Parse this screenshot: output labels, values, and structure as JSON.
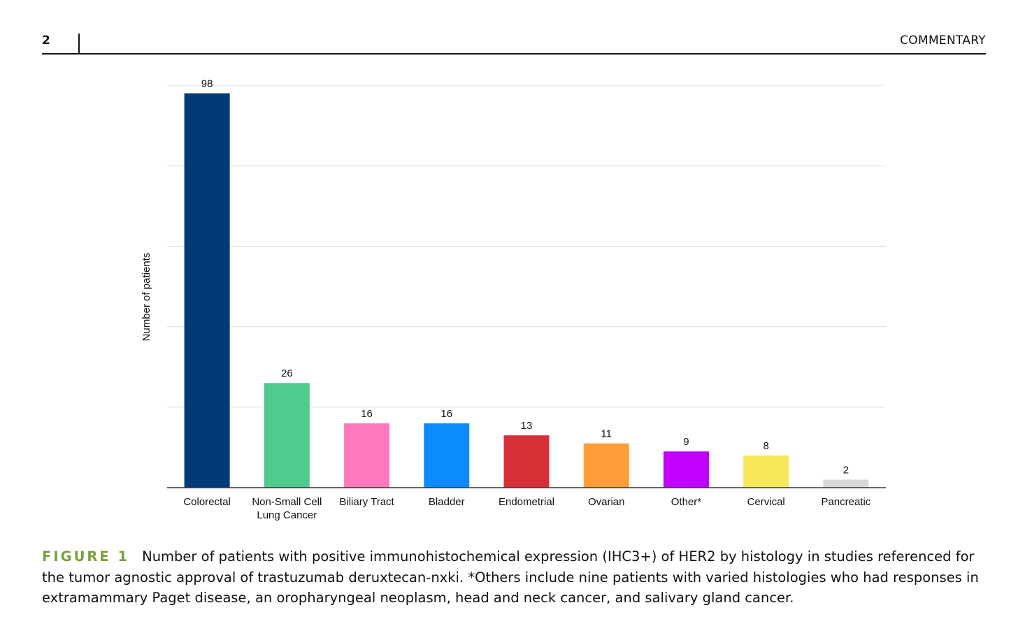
{
  "header": {
    "page_number": "2",
    "section": "COMMENTARY"
  },
  "chart_data": {
    "type": "bar",
    "title": "",
    "xlabel": "",
    "ylabel": "Number of patients",
    "ylim": [
      0,
      100
    ],
    "grid": true,
    "categories": [
      "Colorectal",
      "Non-Small Cell Lung Cancer",
      "Biliary Tract",
      "Bladder",
      "Endometrial",
      "Ovarian",
      "Other*",
      "Cervical",
      "Pancreatic"
    ],
    "category_lines": [
      [
        "Colorectal"
      ],
      [
        "Non-Small Cell",
        "Lung Cancer"
      ],
      [
        "Biliary Tract"
      ],
      [
        "Bladder"
      ],
      [
        "Endometrial"
      ],
      [
        "Ovarian"
      ],
      [
        "Other*"
      ],
      [
        "Cervical"
      ],
      [
        "Pancreatic"
      ]
    ],
    "values": [
      98,
      26,
      16,
      16,
      13,
      11,
      9,
      8,
      2
    ],
    "colors": [
      "#003a78",
      "#4fcb8d",
      "#ff78bb",
      "#0a8cff",
      "#d63037",
      "#ff9d3b",
      "#c100ff",
      "#f9e85c",
      "#d9d9d9"
    ]
  },
  "caption": {
    "label": "FIGURE 1",
    "text": "Number of patients with positive immunohistochemical expression (IHC3+) of HER2 by histology in studies referenced for the tumor agnostic approval of trastuzumab deruxtecan-nxki. *Others include nine patients with varied histologies who had responses in extramammary Paget disease, an oropharyngeal neoplasm, head and neck cancer, and salivary gland cancer."
  }
}
